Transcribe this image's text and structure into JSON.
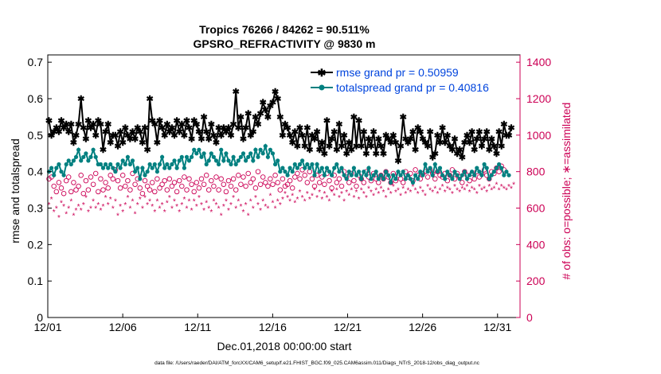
{
  "chart_data": {
    "type": "line",
    "title_line1": "Tropics 76266 / 84262 = 90.511%",
    "title_line2": "GPSRO_REFRACTIVITY @ 9830 m",
    "xlabel": "Dec.01,2018 00:00:00 start",
    "ylabel_left": "rmse and totalspread",
    "ylabel_right": "# of obs: o=possible; ∗=assimilated",
    "footer": "data file: /Users/raeder/DAI/ATM_forcXX/CAM6_setup/f.e21.FHIST_BGC.f09_025.CAM6assim.011/Diags_NTrS_2018-12/obs_diag_output.nc",
    "xlim": [
      0,
      31.5
    ],
    "ylim_left": [
      0,
      0.72
    ],
    "ylim_right": [
      0,
      1440
    ],
    "x_ticks": [
      0,
      5,
      10,
      15,
      20,
      25,
      30
    ],
    "x_tick_labels": [
      "12/01",
      "12/06",
      "12/11",
      "12/16",
      "12/21",
      "12/26",
      "12/31"
    ],
    "y_left_ticks": [
      0,
      0.1,
      0.2,
      0.3,
      0.4,
      0.5,
      0.6,
      0.7
    ],
    "y_left_tick_labels": [
      "0",
      "0.1",
      "0.2",
      "0.3",
      "0.4",
      "0.5",
      "0.6",
      "0.7"
    ],
    "y_right_ticks": [
      0,
      200,
      400,
      600,
      800,
      1000,
      1200,
      1400
    ],
    "y_right_tick_labels": [
      "0",
      "200",
      "400",
      "600",
      "800",
      "1000",
      "1200",
      "1400"
    ],
    "legend_position": "top-right",
    "colors": {
      "rmse": "#000000",
      "spread": "#008080",
      "obs": "#cc0055",
      "title": "#000000",
      "legend_text": "#0044dd"
    },
    "series": [
      {
        "name": "rmse grand pr = 0.50959",
        "axis": "left",
        "values": [
          0.54,
          0.5,
          0.51,
          0.52,
          0.51,
          0.54,
          0.52,
          0.53,
          0.51,
          0.53,
          0.48,
          0.5,
          0.53,
          0.6,
          0.52,
          0.49,
          0.54,
          0.52,
          0.53,
          0.5,
          0.54,
          0.53,
          0.46,
          0.51,
          0.53,
          0.48,
          0.5,
          0.5,
          0.47,
          0.51,
          0.48,
          0.52,
          0.5,
          0.49,
          0.51,
          0.49,
          0.52,
          0.51,
          0.48,
          0.52,
          0.46,
          0.6,
          0.54,
          0.53,
          0.48,
          0.54,
          0.52,
          0.5,
          0.53,
          0.51,
          0.52,
          0.5,
          0.54,
          0.51,
          0.53,
          0.5,
          0.54,
          0.52,
          0.49,
          0.54,
          0.53,
          0.51,
          0.49,
          0.55,
          0.51,
          0.49,
          0.53,
          0.5,
          0.48,
          0.52,
          0.5,
          0.52,
          0.51,
          0.52,
          0.5,
          0.53,
          0.62,
          0.52,
          0.55,
          0.49,
          0.52,
          0.56,
          0.5,
          0.51,
          0.55,
          0.53,
          0.56,
          0.59,
          0.57,
          0.55,
          0.58,
          0.59,
          0.62,
          0.6,
          0.55,
          0.5,
          0.53,
          0.52,
          0.5,
          0.48,
          0.51,
          0.47,
          0.52,
          0.5,
          0.47,
          0.52,
          0.46,
          0.5,
          0.49,
          0.51,
          0.46,
          0.48,
          0.45,
          0.54,
          0.47,
          0.49,
          0.51,
          0.46,
          0.53,
          0.47,
          0.5,
          0.45,
          0.48,
          0.46,
          0.55,
          0.47,
          0.54,
          0.47,
          0.51,
          0.45,
          0.49,
          0.47,
          0.51,
          0.45,
          0.49,
          0.47,
          0.45,
          0.5,
          0.49,
          0.48,
          0.5,
          0.48,
          0.43,
          0.47,
          0.55,
          0.49,
          0.48,
          0.49,
          0.51,
          0.46,
          0.52,
          0.51,
          0.49,
          0.48,
          0.47,
          0.51,
          0.44,
          0.45,
          0.5,
          0.48,
          0.52,
          0.48,
          0.5,
          0.47,
          0.46,
          0.49,
          0.45,
          0.46,
          0.44,
          0.48,
          0.5,
          0.48,
          0.51,
          0.46,
          0.49,
          0.51,
          0.47,
          0.49,
          0.51,
          0.46,
          0.49,
          0.47,
          0.45,
          0.51,
          0.47,
          0.53,
          0.5,
          0.5,
          0.52
        ]
      },
      {
        "name": "totalspread grand pr = 0.40816",
        "axis": "left",
        "values": [
          0.4,
          0.41,
          0.39,
          0.41,
          0.42,
          0.4,
          0.39,
          0.42,
          0.43,
          0.42,
          0.43,
          0.44,
          0.46,
          0.43,
          0.44,
          0.45,
          0.43,
          0.44,
          0.46,
          0.44,
          0.42,
          0.42,
          0.41,
          0.42,
          0.41,
          0.42,
          0.41,
          0.4,
          0.42,
          0.41,
          0.43,
          0.42,
          0.44,
          0.42,
          0.43,
          0.4,
          0.41,
          0.38,
          0.41,
          0.39,
          0.4,
          0.42,
          0.41,
          0.42,
          0.4,
          0.42,
          0.44,
          0.41,
          0.42,
          0.41,
          0.42,
          0.43,
          0.41,
          0.43,
          0.44,
          0.41,
          0.44,
          0.43,
          0.44,
          0.46,
          0.45,
          0.46,
          0.44,
          0.45,
          0.42,
          0.43,
          0.45,
          0.44,
          0.43,
          0.42,
          0.46,
          0.43,
          0.45,
          0.43,
          0.42,
          0.44,
          0.42,
          0.43,
          0.44,
          0.45,
          0.43,
          0.44,
          0.45,
          0.43,
          0.46,
          0.44,
          0.46,
          0.45,
          0.47,
          0.44,
          0.46,
          0.45,
          0.42,
          0.43,
          0.4,
          0.41,
          0.4,
          0.39,
          0.41,
          0.4,
          0.42,
          0.41,
          0.42,
          0.43,
          0.41,
          0.42,
          0.41,
          0.42,
          0.39,
          0.42,
          0.4,
          0.41,
          0.39,
          0.41,
          0.4,
          0.39,
          0.41,
          0.42,
          0.4,
          0.41,
          0.39,
          0.38,
          0.4,
          0.39,
          0.41,
          0.39,
          0.4,
          0.38,
          0.4,
          0.39,
          0.41,
          0.38,
          0.39,
          0.4,
          0.38,
          0.39,
          0.38,
          0.4,
          0.39,
          0.37,
          0.39,
          0.38,
          0.4,
          0.39,
          0.4,
          0.38,
          0.39,
          0.38,
          0.37,
          0.39,
          0.38,
          0.4,
          0.39,
          0.42,
          0.4,
          0.41,
          0.39,
          0.42,
          0.4,
          0.41,
          0.39,
          0.38,
          0.4,
          0.39,
          0.38,
          0.4,
          0.39,
          0.38,
          0.39,
          0.4,
          0.38,
          0.39,
          0.4,
          0.39,
          0.41,
          0.4,
          0.39,
          0.42,
          0.41,
          0.38,
          0.39,
          0.4,
          0.41,
          0.42,
          0.41,
          0.39,
          0.4,
          0.39
        ]
      },
      {
        "name": "obs possible",
        "axis": "right",
        "marker": "o",
        "values": [
          760,
          770,
          720,
          690,
          740,
          710,
          680,
          750,
          770,
          690,
          740,
          700,
          720,
          780,
          680,
          750,
          700,
          770,
          730,
          790,
          690,
          760,
          700,
          740,
          710,
          780,
          760,
          810,
          750,
          710,
          780,
          720,
          750,
          700,
          790,
          730,
          760,
          710,
          680,
          750,
          720,
          700,
          740,
          690,
          760,
          710,
          730,
          750,
          700,
          760,
          720,
          740,
          690,
          750,
          720,
          770,
          700,
          760,
          730,
          690,
          740,
          710,
          760,
          730,
          780,
          700,
          750,
          720,
          770,
          700,
          760,
          730,
          690,
          750,
          720,
          760,
          700,
          780,
          730,
          770,
          720,
          790,
          740,
          760,
          710,
          800,
          730,
          770,
          740,
          720,
          760,
          730,
          780,
          740,
          700,
          760,
          720,
          730,
          750,
          710,
          770,
          790,
          760,
          810,
          780,
          740,
          800,
          760,
          720,
          780,
          740,
          770,
          730,
          790,
          750,
          710,
          780,
          740,
          760,
          720,
          800,
          770,
          740,
          790,
          750,
          720,
          780,
          760,
          740,
          800,
          770,
          750,
          790,
          760,
          740,
          780,
          760,
          800,
          770,
          740,
          790,
          750,
          780,
          760,
          740,
          800,
          770,
          790,
          750,
          810,
          780,
          760,
          790,
          800,
          770,
          810,
          790,
          760,
          800,
          780,
          770,
          790,
          750,
          780,
          810,
          760,
          790,
          770,
          740,
          800,
          780,
          750,
          790,
          760,
          800,
          770,
          790,
          810,
          780,
          760,
          800,
          790,
          820,
          800,
          830,
          810
        ]
      },
      {
        "name": "obs assimilated",
        "axis": "right",
        "marker": "*",
        "values": [
          620,
          650,
          580,
          600,
          550,
          630,
          610,
          570,
          600,
          640,
          560,
          590,
          610,
          590,
          620,
          660,
          580,
          600,
          640,
          600,
          620,
          590,
          610,
          660,
          620,
          650,
          600,
          640,
          560,
          610,
          580,
          620,
          660,
          600,
          640,
          570,
          620,
          650,
          600,
          660,
          620,
          640,
          610,
          580,
          640,
          600,
          620,
          580,
          630,
          660,
          600,
          640,
          610,
          580,
          620,
          650,
          600,
          640,
          590,
          640,
          610,
          660,
          620,
          590,
          630,
          600,
          580,
          640,
          620,
          600,
          560,
          610,
          640,
          590,
          620,
          660,
          600,
          640,
          610,
          580,
          620,
          560,
          640,
          600,
          660,
          620,
          590,
          640,
          610,
          600,
          670,
          630,
          600,
          640,
          620,
          650,
          680,
          660,
          640,
          670,
          630,
          650,
          690,
          660,
          640,
          680,
          650,
          670,
          700,
          660,
          690,
          650,
          680,
          660,
          640,
          690,
          670,
          700,
          660,
          680,
          640,
          690,
          670,
          700,
          660,
          690,
          650,
          700,
          680,
          660,
          710,
          690,
          670,
          700,
          680,
          710,
          690,
          660,
          700,
          680,
          720,
          690,
          700,
          670,
          710,
          680,
          700,
          690,
          720,
          700,
          680,
          710,
          690,
          670,
          720,
          700,
          690,
          710,
          680,
          700,
          720,
          690,
          710,
          700,
          680,
          720,
          700,
          690,
          710,
          700,
          720,
          690,
          710,
          700,
          680,
          720,
          700,
          710,
          690,
          720,
          700,
          710,
          730,
          700,
          720,
          710,
          700,
          720,
          710,
          730
        ]
      }
    ]
  }
}
